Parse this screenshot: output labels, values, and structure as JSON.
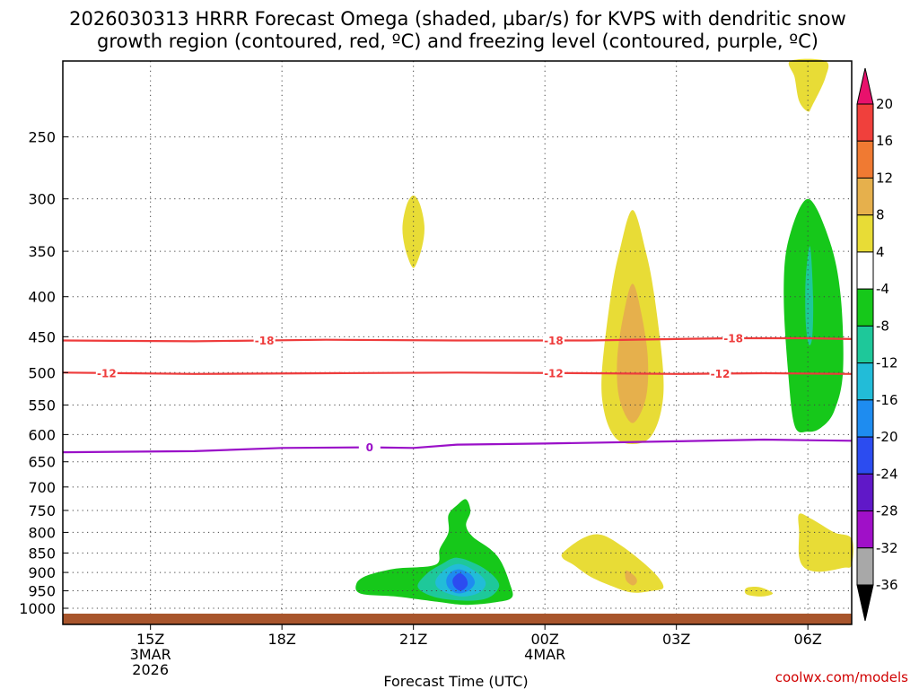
{
  "chart_data": {
    "type": "contour-timeheight",
    "title_line1": "2026030313 HRRR Forecast Omega (shaded, µbar/s) for KVPS with dendritic snow",
    "title_line2": "growth region (contoured, red, ºC) and freezing level (contoured, purple, ºC)",
    "xlabel": "Forecast Time (UTC)",
    "credit": "coolwx.com/models",
    "x_range_hours": [
      13,
      31
    ],
    "x_ticks": [
      {
        "hour": 15,
        "lines": [
          "15Z",
          "3MAR",
          "2026"
        ]
      },
      {
        "hour": 18,
        "lines": [
          "18Z"
        ]
      },
      {
        "hour": 21,
        "lines": [
          "21Z"
        ]
      },
      {
        "hour": 24,
        "lines": [
          "00Z",
          "4MAR"
        ]
      },
      {
        "hour": 27,
        "lines": [
          "03Z"
        ]
      },
      {
        "hour": 30,
        "lines": [
          "06Z"
        ]
      }
    ],
    "y_range_mb": [
      200,
      1000
    ],
    "y_ticks": [
      250,
      300,
      350,
      400,
      450,
      500,
      550,
      600,
      650,
      700,
      750,
      800,
      850,
      900,
      950,
      1000
    ],
    "colorbar": {
      "labels": [
        "20",
        "16",
        "12",
        "8",
        "4",
        "-4",
        "-8",
        "-12",
        "-16",
        "-20",
        "-24",
        "-28",
        "-32",
        "-36"
      ],
      "colors": [
        "#e8116c",
        "#f0403c",
        "#f07a32",
        "#e6b04c",
        "#e8dc36",
        "#ffffff",
        "#16c81a",
        "#1ec89a",
        "#22bcd8",
        "#1e8cf0",
        "#2c4cf0",
        "#6018c8",
        "#a010c8",
        "#a8a8a8",
        "#000000"
      ]
    },
    "contours": [
      {
        "name": "dgz-minus-18",
        "color": "#ee3c3c",
        "label": "-18",
        "label_hours": [
          17.6,
          24.2,
          28.3
        ],
        "points": [
          [
            13,
            455
          ],
          [
            16,
            456
          ],
          [
            19,
            454
          ],
          [
            22,
            455
          ],
          [
            25,
            455
          ],
          [
            27,
            453
          ],
          [
            28.3,
            452
          ],
          [
            30,
            452
          ],
          [
            31,
            453
          ]
        ]
      },
      {
        "name": "dgz-minus-12",
        "color": "#ee3c3c",
        "label": "-12",
        "label_hours": [
          14.0,
          24.2,
          28.0
        ],
        "points": [
          [
            13,
            500
          ],
          [
            16,
            502
          ],
          [
            19,
            501
          ],
          [
            22,
            500
          ],
          [
            25,
            501
          ],
          [
            27,
            502
          ],
          [
            29,
            501
          ],
          [
            31,
            502
          ]
        ]
      },
      {
        "name": "freezing-level-0",
        "color": "#9a10c8",
        "label": "0",
        "label_hours": [
          20.0
        ],
        "points": [
          [
            13,
            632
          ],
          [
            16,
            630
          ],
          [
            18,
            624
          ],
          [
            20,
            623
          ],
          [
            21,
            624
          ],
          [
            22,
            618
          ],
          [
            24,
            616
          ],
          [
            27,
            612
          ],
          [
            29,
            609
          ],
          [
            30,
            610
          ],
          [
            31,
            611
          ]
        ]
      }
    ],
    "shaded_regions": [
      {
        "name": "omega-pos-4-top-right",
        "level": "4",
        "color": "#e8dc36",
        "points": [
          [
            29.6,
            200
          ],
          [
            30.4,
            200
          ],
          [
            30.4,
            210
          ],
          [
            30.1,
            228
          ],
          [
            30.0,
            232
          ],
          [
            29.8,
            225
          ],
          [
            29.7,
            210
          ]
        ]
      },
      {
        "name": "omega-pos-4-upper-21z",
        "level": "4",
        "color": "#e8dc36",
        "points": [
          [
            21.0,
            297
          ],
          [
            21.15,
            305
          ],
          [
            21.25,
            325
          ],
          [
            21.2,
            345
          ],
          [
            21.05,
            365
          ],
          [
            20.95,
            365
          ],
          [
            20.8,
            345
          ],
          [
            20.75,
            325
          ],
          [
            20.85,
            305
          ]
        ]
      },
      {
        "name": "omega-pos-4-column-02z",
        "level": "4",
        "color": "#e8dc36",
        "points": [
          [
            26.0,
            310
          ],
          [
            26.3,
            350
          ],
          [
            26.5,
            400
          ],
          [
            26.7,
            500
          ],
          [
            26.65,
            560
          ],
          [
            26.4,
            605
          ],
          [
            26.0,
            617
          ],
          [
            25.6,
            605
          ],
          [
            25.35,
            560
          ],
          [
            25.3,
            500
          ],
          [
            25.5,
            400
          ],
          [
            25.7,
            350
          ]
        ]
      },
      {
        "name": "omega-pos-8-column-02z",
        "level": "8",
        "color": "#e6b04c",
        "points": [
          [
            26.0,
            385
          ],
          [
            26.2,
            420
          ],
          [
            26.35,
            480
          ],
          [
            26.3,
            540
          ],
          [
            26.0,
            580
          ],
          [
            25.7,
            540
          ],
          [
            25.65,
            480
          ],
          [
            25.8,
            420
          ]
        ]
      },
      {
        "name": "omega-neg-4-column-06z",
        "level": "-4",
        "color": "#16c81a",
        "points": [
          [
            30.0,
            300
          ],
          [
            30.5,
            340
          ],
          [
            30.75,
            400
          ],
          [
            30.8,
            500
          ],
          [
            30.6,
            560
          ],
          [
            30.3,
            588
          ],
          [
            30.0,
            595
          ],
          [
            29.7,
            585
          ],
          [
            29.55,
            500
          ],
          [
            29.45,
            400
          ],
          [
            29.55,
            340
          ]
        ]
      },
      {
        "name": "omega-neg-8-column-06z",
        "level": "-8",
        "color": "#1ec89a",
        "points": [
          [
            30.05,
            345
          ],
          [
            30.12,
            400
          ],
          [
            30.1,
            450
          ],
          [
            30.02,
            460
          ],
          [
            29.95,
            430
          ],
          [
            29.95,
            380
          ]
        ]
      },
      {
        "name": "omega-pos-4-right-lower",
        "level": "4",
        "color": "#e8dc36",
        "points": [
          [
            29.8,
            758
          ],
          [
            30.1,
            770
          ],
          [
            30.6,
            800
          ],
          [
            31.0,
            815
          ],
          [
            31.0,
            880
          ],
          [
            30.8,
            888
          ],
          [
            30.3,
            898
          ],
          [
            29.95,
            890
          ],
          [
            29.8,
            860
          ],
          [
            29.8,
            800
          ]
        ]
      },
      {
        "name": "omega-pos-4-lower-01z",
        "level": "4",
        "color": "#e8dc36",
        "points": [
          [
            24.45,
            845
          ],
          [
            24.9,
            812
          ],
          [
            25.3,
            806
          ],
          [
            25.8,
            836
          ],
          [
            26.3,
            880
          ],
          [
            26.6,
            915
          ],
          [
            26.7,
            942
          ],
          [
            26.45,
            950
          ],
          [
            26.0,
            955
          ],
          [
            25.55,
            938
          ],
          [
            25.05,
            912
          ],
          [
            24.65,
            880
          ],
          [
            24.4,
            862
          ]
        ]
      },
      {
        "name": "omega-pos-8-lower-02z",
        "level": "8",
        "color": "#e6b04c",
        "points": [
          [
            25.85,
            895
          ],
          [
            26.05,
            910
          ],
          [
            26.1,
            925
          ],
          [
            26.0,
            935
          ],
          [
            25.85,
            920
          ]
        ]
      },
      {
        "name": "omega-pos-4-lower-04z",
        "level": "4",
        "color": "#e8dc36",
        "points": [
          [
            28.6,
            942
          ],
          [
            28.9,
            940
          ],
          [
            29.2,
            957
          ],
          [
            28.95,
            966
          ],
          [
            28.6,
            960
          ]
        ]
      },
      {
        "name": "omega-neg-4-lower-22z",
        "level": "-4",
        "color": "#16c81a",
        "points": [
          [
            22.0,
            738
          ],
          [
            22.2,
            726
          ],
          [
            22.3,
            752
          ],
          [
            22.2,
            783
          ],
          [
            22.35,
            810
          ],
          [
            22.75,
            840
          ],
          [
            23.0,
            872
          ],
          [
            23.2,
            930
          ],
          [
            23.25,
            968
          ],
          [
            22.9,
            982
          ],
          [
            22.2,
            990
          ],
          [
            21.6,
            982
          ],
          [
            20.6,
            966
          ],
          [
            19.8,
            958
          ],
          [
            19.7,
            930
          ],
          [
            19.95,
            908
          ],
          [
            20.6,
            890
          ],
          [
            21.5,
            880
          ],
          [
            21.6,
            840
          ],
          [
            21.8,
            800
          ],
          [
            21.8,
            760
          ]
        ]
      },
      {
        "name": "omega-neg-8-lower-22z",
        "level": "-8",
        "color": "#1ec89a",
        "points": [
          [
            22.0,
            862
          ],
          [
            22.5,
            882
          ],
          [
            22.85,
            912
          ],
          [
            22.95,
            940
          ],
          [
            22.7,
            970
          ],
          [
            22.2,
            978
          ],
          [
            21.5,
            968
          ],
          [
            21.1,
            940
          ],
          [
            21.3,
            904
          ],
          [
            21.65,
            878
          ]
        ]
      },
      {
        "name": "omega-neg-12-lower-22z",
        "level": "-12",
        "color": "#22bcd8",
        "points": [
          [
            22.05,
            878
          ],
          [
            22.45,
            900
          ],
          [
            22.65,
            928
          ],
          [
            22.5,
            955
          ],
          [
            22.1,
            966
          ],
          [
            21.65,
            950
          ],
          [
            21.5,
            925
          ],
          [
            21.7,
            894
          ]
        ]
      },
      {
        "name": "omega-neg-16-lower-22z",
        "level": "-16",
        "color": "#1e8cf0",
        "points": [
          [
            22.05,
            892
          ],
          [
            22.3,
            905
          ],
          [
            22.4,
            928
          ],
          [
            22.25,
            950
          ],
          [
            22.0,
            957
          ],
          [
            21.8,
            942
          ],
          [
            21.75,
            920
          ],
          [
            21.85,
            900
          ]
        ]
      },
      {
        "name": "omega-neg-20-lower-22z",
        "level": "-20",
        "color": "#2c4cf0",
        "points": [
          [
            22.05,
            902
          ],
          [
            22.2,
            915
          ],
          [
            22.23,
            935
          ],
          [
            22.08,
            950
          ],
          [
            21.93,
            938
          ],
          [
            21.9,
            918
          ]
        ]
      }
    ]
  }
}
